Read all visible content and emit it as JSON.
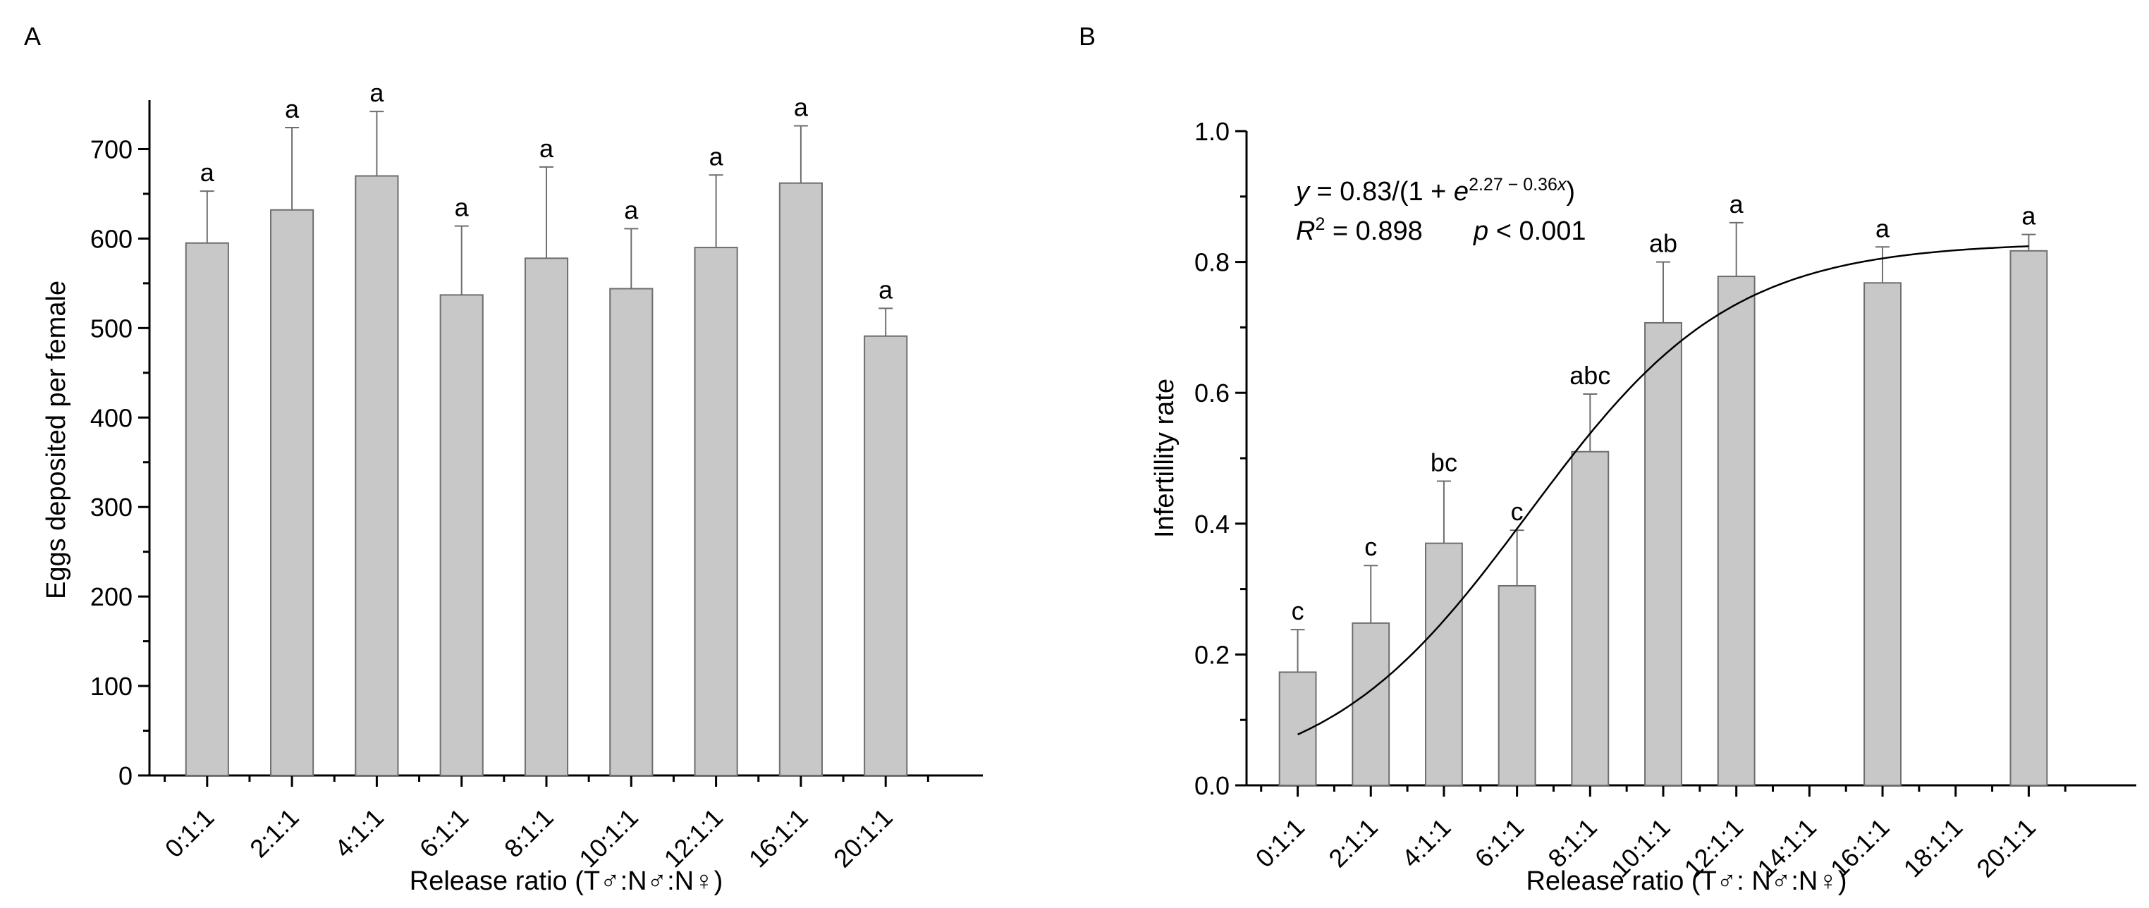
{
  "chart_data": [
    {
      "panel": "A",
      "type": "bar",
      "title": "",
      "xlabel": "Release ratio (T♂:N♂:N♀)",
      "ylabel": "Eggs deposited per female",
      "ylim": [
        0,
        750
      ],
      "yticks": [
        0,
        100,
        200,
        300,
        400,
        500,
        600,
        700
      ],
      "categories": [
        "0:1:1",
        "2:1:1",
        "4:1:1",
        "6:1:1",
        "8:1:1",
        "10:1:1",
        "12:1:1",
        "16:1:1",
        "20:1:1"
      ],
      "values": [
        595,
        632,
        670,
        537,
        578,
        544,
        590,
        662,
        491
      ],
      "error": [
        58,
        92,
        72,
        77,
        102,
        67,
        81,
        64,
        31
      ],
      "significance": [
        "a",
        "a",
        "a",
        "a",
        "a",
        "a",
        "a",
        "a",
        "a"
      ]
    },
    {
      "panel": "B",
      "type": "bar",
      "title": "",
      "xlabel": "Release ratio (T♂: N♂:N♀)",
      "ylabel": "Infertillity rate",
      "ylim": [
        0,
        1.0
      ],
      "yticks": [
        "0.0",
        "0.2",
        "0.4",
        "0.6",
        "0.8",
        "1.0"
      ],
      "categories": [
        "0:1:1",
        "2:1:1",
        "4:1:1",
        "6:1:1",
        "8:1:1",
        "10:1:1",
        "12:1:1",
        "14:1:1",
        "16:1:1",
        "18:1:1",
        "20:1:1"
      ],
      "values": [
        0.173,
        0.248,
        0.37,
        0.305,
        0.51,
        0.707,
        0.778,
        null,
        0.768,
        null,
        0.817
      ],
      "error": [
        0.065,
        0.088,
        0.095,
        0.085,
        0.088,
        0.093,
        0.082,
        null,
        0.055,
        null,
        0.025
      ],
      "significance": [
        "c",
        "c",
        "bc",
        "c",
        "abc",
        "ab",
        "a",
        "",
        "a",
        "",
        "a"
      ],
      "fit": {
        "a": 0.83,
        "b": 2.27,
        "c": 0.36,
        "x_from": 0,
        "x_to": 20,
        "eq_y": "y",
        "eq_body": " = 0.83/(1 + ",
        "eq_e": "e",
        "eq_exp_num": "2.27 − 0.36",
        "eq_exp_x": "x",
        "eq_close": ")",
        "r2_r": "R",
        "r2_sup": "2",
        "r2_val": " = 0.898",
        "p_p": "p",
        "p_val": " < 0.001"
      }
    }
  ],
  "panels": {
    "a_label": "A",
    "b_label": "B"
  },
  "colors": {
    "bar_fill": "#c8c8c8",
    "bar_stroke": "#6e6e6e",
    "axis": "#000000"
  }
}
